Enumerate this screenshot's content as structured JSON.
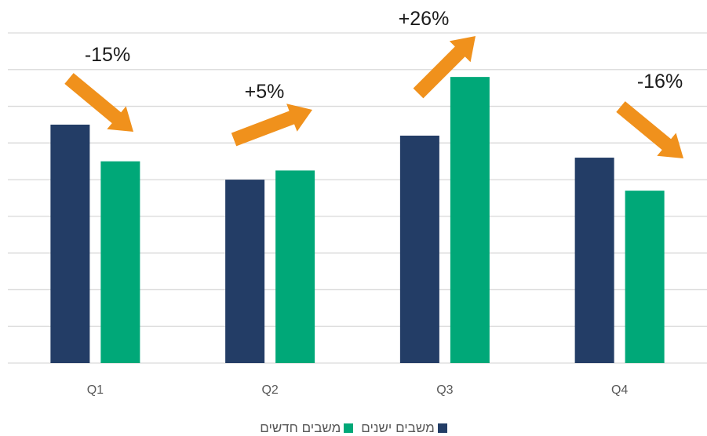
{
  "chart_data": {
    "type": "bar",
    "categories": [
      "Q1",
      "Q2",
      "Q3",
      "Q4"
    ],
    "series": [
      {
        "name": "משבים ישנים",
        "color": "#233d66",
        "values": [
          6.5,
          5.0,
          6.2,
          5.6
        ]
      },
      {
        "name": "משבים חדשים",
        "color": "#00a878",
        "values": [
          5.5,
          5.25,
          7.8,
          4.7
        ]
      }
    ],
    "ylim": [
      0,
      9
    ],
    "grid": true,
    "legend": "bottom",
    "annotations": [
      {
        "category": "Q1",
        "text": "-15%",
        "direction": "down",
        "color": "#f0911c"
      },
      {
        "category": "Q2",
        "text": "+5%",
        "direction": "up",
        "color": "#f0911c"
      },
      {
        "category": "Q3",
        "text": "+26%",
        "direction": "up",
        "color": "#f0911c"
      },
      {
        "category": "Q4",
        "text": "-16%",
        "direction": "down",
        "color": "#f0911c"
      }
    ]
  }
}
